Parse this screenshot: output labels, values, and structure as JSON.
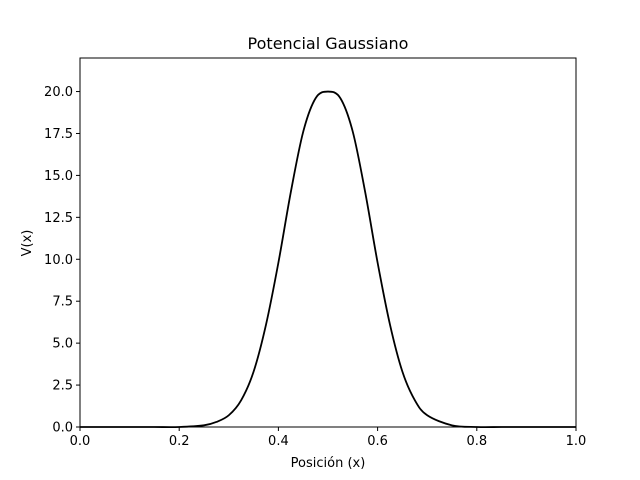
{
  "chart_data": {
    "type": "line",
    "title": "Potencial Gaussiano",
    "xlabel": "Posición (x)",
    "ylabel": "V(x)",
    "xlim": [
      0.0,
      1.0
    ],
    "ylim": [
      0.0,
      22.0
    ],
    "grid": false,
    "legend": "none",
    "line_color": "#000000",
    "x_ticks": [
      0.0,
      0.2,
      0.4,
      0.6,
      0.8,
      1.0
    ],
    "x_tick_labels": [
      "0.0",
      "0.2",
      "0.4",
      "0.6",
      "0.8",
      "1.0"
    ],
    "y_ticks": [
      0.0,
      2.5,
      5.0,
      7.5,
      10.0,
      12.5,
      15.0,
      17.5,
      20.0
    ],
    "y_tick_labels": [
      "0.0",
      "2.5",
      "5.0",
      "7.5",
      "10.0",
      "12.5",
      "15.0",
      "17.5",
      "20.0"
    ],
    "series": [
      {
        "x": [
          0.0,
          0.05,
          0.1,
          0.15,
          0.2,
          0.25,
          0.275,
          0.3,
          0.325,
          0.35,
          0.375,
          0.4,
          0.425,
          0.45,
          0.475,
          0.5,
          0.525,
          0.55,
          0.575,
          0.6,
          0.625,
          0.65,
          0.675,
          0.7,
          0.75,
          0.8,
          0.85,
          0.9,
          0.95,
          1.0
        ],
        "values": [
          0.0,
          0.0,
          0.0,
          0.0,
          0.0,
          0.1,
          0.3,
          0.7,
          1.6,
          3.3,
          6.1,
          9.8,
          14.0,
          17.6,
          19.6,
          20.0,
          19.6,
          17.6,
          14.0,
          9.8,
          6.1,
          3.3,
          1.6,
          0.7,
          0.1,
          0.0,
          0.0,
          0.0,
          0.0,
          0.0
        ]
      }
    ]
  }
}
